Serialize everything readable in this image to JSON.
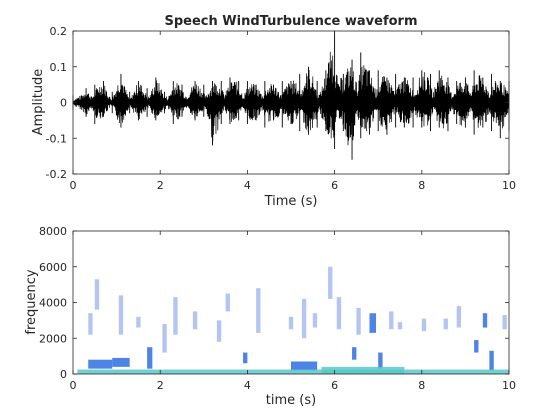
{
  "chart_data": [
    {
      "type": "line",
      "title": "Speech WindTurbulence waveform",
      "xlabel": "Time (s)",
      "ylabel": "Amplitude",
      "xlim": [
        0,
        10
      ],
      "ylim": [
        -0.2,
        0.2
      ],
      "x_ticks": [
        "0",
        "2",
        "4",
        "6",
        "8",
        "10"
      ],
      "y_ticks": [
        "-0.2",
        "-0.1",
        "0",
        "0.1",
        "0.2"
      ],
      "line_color": "#000000",
      "series": [
        {
          "envelope_time_s": [
            0.0,
            0.2,
            0.3,
            0.5,
            0.7,
            0.9,
            1.1,
            1.3,
            1.5,
            1.7,
            1.9,
            2.1,
            2.3,
            2.5,
            2.8,
            3.0,
            3.2,
            3.4,
            3.6,
            3.8,
            4.0,
            4.2,
            4.4,
            4.6,
            4.8,
            5.0,
            5.2,
            5.4,
            5.6,
            5.8,
            6.0,
            6.2,
            6.4,
            6.6,
            6.8,
            7.0,
            7.2,
            7.4,
            7.6,
            7.8,
            8.0,
            8.2,
            8.4,
            8.6,
            8.8,
            9.0,
            9.2,
            9.4,
            9.6,
            9.8,
            10.0
          ],
          "upper": [
            0.02,
            0.02,
            0.04,
            0.05,
            0.06,
            0.03,
            0.08,
            0.03,
            0.06,
            0.04,
            0.07,
            0.03,
            0.06,
            0.05,
            0.06,
            0.05,
            0.06,
            0.06,
            0.07,
            0.06,
            0.06,
            0.05,
            0.06,
            0.05,
            0.06,
            0.06,
            0.08,
            0.1,
            0.06,
            0.09,
            0.2,
            0.08,
            0.12,
            0.14,
            0.09,
            0.09,
            0.07,
            0.08,
            0.07,
            0.07,
            0.09,
            0.08,
            0.09,
            0.07,
            0.06,
            0.07,
            0.09,
            0.07,
            0.08,
            0.06,
            0.06
          ],
          "lower": [
            -0.02,
            -0.02,
            -0.04,
            -0.06,
            -0.04,
            -0.03,
            -0.07,
            -0.03,
            -0.05,
            -0.04,
            -0.05,
            -0.03,
            -0.06,
            -0.04,
            -0.05,
            -0.04,
            -0.12,
            -0.06,
            -0.06,
            -0.05,
            -0.06,
            -0.05,
            -0.07,
            -0.05,
            -0.07,
            -0.06,
            -0.08,
            -0.09,
            -0.07,
            -0.08,
            -0.13,
            -0.08,
            -0.16,
            -0.1,
            -0.09,
            -0.08,
            -0.09,
            -0.07,
            -0.07,
            -0.07,
            -0.07,
            -0.08,
            -0.07,
            -0.08,
            -0.06,
            -0.07,
            -0.09,
            -0.07,
            -0.08,
            -0.1,
            -0.08
          ]
        }
      ]
    },
    {
      "type": "heatmap",
      "title": "",
      "xlabel": "time (s)",
      "ylabel": "frequency",
      "xlim": [
        0,
        10
      ],
      "ylim": [
        0,
        8000
      ],
      "x_ticks": [
        "0",
        "2",
        "4",
        "6",
        "8",
        "10"
      ],
      "y_ticks": [
        "0",
        "2000",
        "4000",
        "6000",
        "8000"
      ],
      "colors": {
        "low": "#5bc8c8",
        "mid": "#2f6fe0",
        "high": "#a7bbef"
      },
      "cells": [
        {
          "t0": 0.35,
          "t1": 0.45,
          "f0": 2200,
          "f1": 3400,
          "level": "high"
        },
        {
          "t0": 0.5,
          "t1": 0.6,
          "f0": 3600,
          "f1": 5300,
          "level": "high"
        },
        {
          "t0": 0.35,
          "t1": 0.9,
          "f0": 300,
          "f1": 800,
          "level": "mid"
        },
        {
          "t0": 1.05,
          "t1": 1.15,
          "f0": 2200,
          "f1": 4400,
          "level": "high"
        },
        {
          "t0": 0.9,
          "t1": 1.3,
          "f0": 400,
          "f1": 900,
          "level": "mid"
        },
        {
          "t0": 1.45,
          "t1": 1.55,
          "f0": 2600,
          "f1": 3200,
          "level": "high"
        },
        {
          "t0": 1.7,
          "t1": 1.82,
          "f0": 300,
          "f1": 1500,
          "level": "mid"
        },
        {
          "t0": 2.05,
          "t1": 2.15,
          "f0": 1200,
          "f1": 2800,
          "level": "high"
        },
        {
          "t0": 2.3,
          "t1": 2.4,
          "f0": 2200,
          "f1": 4300,
          "level": "high"
        },
        {
          "t0": 2.75,
          "t1": 2.85,
          "f0": 2500,
          "f1": 3500,
          "level": "high"
        },
        {
          "t0": 3.3,
          "t1": 3.4,
          "f0": 1800,
          "f1": 3000,
          "level": "high"
        },
        {
          "t0": 3.5,
          "t1": 3.6,
          "f0": 3500,
          "f1": 4500,
          "level": "high"
        },
        {
          "t0": 3.9,
          "t1": 4.0,
          "f0": 600,
          "f1": 1200,
          "level": "mid"
        },
        {
          "t0": 4.2,
          "t1": 4.3,
          "f0": 2300,
          "f1": 4800,
          "level": "high"
        },
        {
          "t0": 4.95,
          "t1": 5.05,
          "f0": 2500,
          "f1": 3200,
          "level": "high"
        },
        {
          "t0": 5.0,
          "t1": 5.6,
          "f0": 200,
          "f1": 700,
          "level": "mid"
        },
        {
          "t0": 5.25,
          "t1": 5.35,
          "f0": 2000,
          "f1": 4200,
          "level": "high"
        },
        {
          "t0": 5.5,
          "t1": 5.6,
          "f0": 2600,
          "f1": 3400,
          "level": "high"
        },
        {
          "t0": 5.85,
          "t1": 5.95,
          "f0": 4200,
          "f1": 6000,
          "level": "high"
        },
        {
          "t0": 6.05,
          "t1": 6.15,
          "f0": 2500,
          "f1": 4300,
          "level": "high"
        },
        {
          "t0": 6.4,
          "t1": 6.5,
          "f0": 800,
          "f1": 1500,
          "level": "mid"
        },
        {
          "t0": 6.5,
          "t1": 6.6,
          "f0": 2200,
          "f1": 3700,
          "level": "high"
        },
        {
          "t0": 6.8,
          "t1": 6.95,
          "f0": 2300,
          "f1": 3400,
          "level": "mid"
        },
        {
          "t0": 7.0,
          "t1": 7.1,
          "f0": 300,
          "f1": 1200,
          "level": "mid"
        },
        {
          "t0": 7.25,
          "t1": 7.35,
          "f0": 2500,
          "f1": 3500,
          "level": "high"
        },
        {
          "t0": 7.45,
          "t1": 7.55,
          "f0": 2500,
          "f1": 2900,
          "level": "high"
        },
        {
          "t0": 8.0,
          "t1": 8.1,
          "f0": 2400,
          "f1": 3100,
          "level": "high"
        },
        {
          "t0": 8.5,
          "t1": 8.6,
          "f0": 2500,
          "f1": 3100,
          "level": "high"
        },
        {
          "t0": 8.8,
          "t1": 8.9,
          "f0": 2600,
          "f1": 3800,
          "level": "high"
        },
        {
          "t0": 9.2,
          "t1": 9.3,
          "f0": 1200,
          "f1": 1900,
          "level": "mid"
        },
        {
          "t0": 9.4,
          "t1": 9.5,
          "f0": 2600,
          "f1": 3400,
          "level": "mid"
        },
        {
          "t0": 9.55,
          "t1": 9.65,
          "f0": 200,
          "f1": 1300,
          "level": "mid"
        },
        {
          "t0": 9.85,
          "t1": 9.95,
          "f0": 2500,
          "f1": 3300,
          "level": "high"
        },
        {
          "t0": 0.1,
          "t1": 10.0,
          "f0": 0,
          "f1": 250,
          "level": "low"
        },
        {
          "t0": 5.7,
          "t1": 7.6,
          "f0": 0,
          "f1": 400,
          "level": "low"
        }
      ]
    }
  ]
}
